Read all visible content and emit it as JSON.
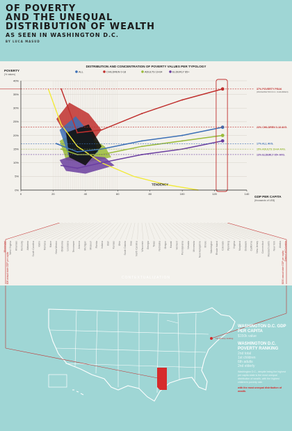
{
  "header": {
    "title_line1": "OF POVERTY",
    "title_line2": "AND THE UNEQUAL",
    "title_line3": "DISTRIBUTION OF WEALTH",
    "subtitle": "AS SEEN IN WASHINGTON D.C.",
    "author": "BY LUCA MASUD"
  },
  "colors": {
    "background": "#9fd6d5",
    "all": "#3b6fb6",
    "children": "#c0302e",
    "adults": "#9abb3a",
    "elderly": "#6b3fa0",
    "tendency": "#f2ea3a"
  },
  "chart_data": {
    "type": "scatter",
    "title": "DISTRIBUTION AND CONCENTRATION OF POVERTY VALUES PER TYPOLOGY",
    "ylabel": "POVERTY",
    "ylabel_sub": "(% values)",
    "xlabel": "GDP PER CAPITA",
    "xlabel_sub": "(thousands of US$)",
    "xlim": [
      0,
      140
    ],
    "ylim": [
      0,
      40
    ],
    "x_ticks": [
      0,
      20,
      40,
      60,
      80,
      100,
      120,
      140
    ],
    "y_ticks": [
      0,
      5,
      10,
      15,
      20,
      25,
      30,
      35,
      40
    ],
    "y_tick_labels": [
      "0%",
      "5%",
      "10%",
      "15%",
      "20%",
      "25%",
      "30%",
      "35%",
      "40%"
    ],
    "legend": [
      "ALL",
      "CHILDREN 0-18",
      "ADULTS 19-64",
      "ELDERLY 65+"
    ],
    "series": [
      {
        "name": "ALL",
        "key": "all",
        "x": [
          22,
          35,
          50,
          75,
          100,
          125
        ],
        "y": [
          17,
          14,
          15,
          18,
          20,
          23
        ]
      },
      {
        "name": "CHILDREN 0-18",
        "key": "children",
        "x": [
          25,
          35,
          50,
          75,
          100,
          125
        ],
        "y": [
          37,
          21,
          22,
          28,
          33,
          37
        ]
      },
      {
        "name": "ADULTS 19-64",
        "key": "adults",
        "x": [
          25,
          35,
          50,
          75,
          100,
          125
        ],
        "y": [
          15,
          13,
          13,
          16,
          18,
          20
        ]
      },
      {
        "name": "ELDERLY 65+",
        "key": "elderly",
        "x": [
          25,
          35,
          50,
          75,
          100,
          125
        ],
        "y": [
          9,
          8,
          10,
          13,
          15,
          18
        ]
      }
    ],
    "tendency": {
      "label": "TENDENCY",
      "x": [
        17,
        25,
        35,
        50,
        70,
        90,
        110
      ],
      "y": [
        37,
        24,
        16,
        10,
        5,
        2,
        0
      ]
    },
    "reference_lines": [
      {
        "key": "children",
        "value": 37,
        "label": "37% POVERTY PEAK",
        "sub": "(WASHINGTON D.C. CHILDREN)"
      },
      {
        "key": "children",
        "value": 23,
        "label": "23% CHILDREN 0-18 AVG."
      },
      {
        "key": "all",
        "value": 17,
        "label": "17% ALL AVG."
      },
      {
        "key": "adults",
        "value": 15,
        "label": "15% ADULTS 19-64 AVG."
      },
      {
        "key": "elderly",
        "value": 13,
        "label": "13% ELDERLY 65+ AVG."
      }
    ]
  },
  "states": [
    "Mississippi",
    "West Virginia",
    "Arkansas",
    "Kentucky",
    "Alabama",
    "South Carolina",
    "Idaho",
    "Montana",
    "Maine",
    "New Mexico",
    "Oklahoma",
    "Louisiana",
    "Tennessee",
    "Arizona",
    "Michigan",
    "Missouri",
    "Florida",
    "Indiana",
    "Utah",
    "Kansas",
    "Ohio",
    "South Dakota",
    "Iowa",
    "North Carolina",
    "Wisconsin",
    "Georgia",
    "Texas",
    "Nebraska",
    "Oregon",
    "Hawaii",
    "Vermont",
    "Pennsylvania",
    "Nevada",
    "Minnesota",
    "New Hampshire",
    "Illinois",
    "Washington",
    "Rhode Island",
    "Colorado",
    "Wyoming",
    "Virginia",
    "Maryland",
    "Delaware",
    "California",
    "New Jersey",
    "Connecticut",
    "Massachusetts",
    "New York",
    "Alaska",
    "District of Columbia"
  ],
  "context": {
    "label": "CONTEXTUALIZATION",
    "low_gdp": "$26 annual state GDP per capita",
    "high_gdp": "$150 annual state GDP per capita"
  },
  "sidebar": {
    "gdp_title": "WASHINGTON D.C. GDP PER CAPITA",
    "gdp_value": "$150k value",
    "ranking_title": "WASHINGTON D.C. POVERTY RANKING",
    "ranking_lines": [
      "2nd total",
      "1st children",
      "6th adults",
      "2nd elderly"
    ],
    "paragraph": "Washington D.C., despite being the highest per capita state is the most unequal distribution of wealth, with the highest children's poverty rate.",
    "highlight": "with the most unequal distribution of wealth."
  },
  "map": {
    "ranking_note": "1st poverty ranking"
  }
}
